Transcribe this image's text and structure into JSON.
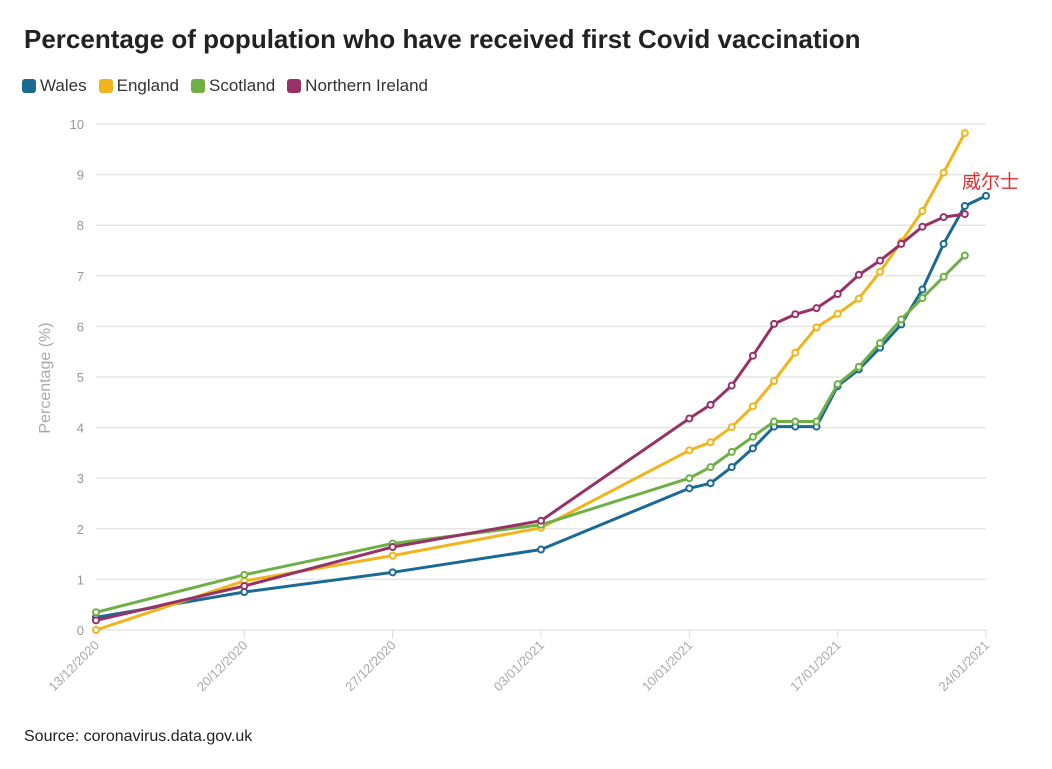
{
  "title": "Percentage of population who have received first Covid vaccination",
  "source": "Source: coronavirus.data.gov.uk",
  "legend": [
    {
      "name": "Wales",
      "color": "#1b6a94"
    },
    {
      "name": "England",
      "color": "#f0b51c"
    },
    {
      "name": "Scotland",
      "color": "#6fb046"
    },
    {
      "name": "Northern Ireland",
      "color": "#973267"
    }
  ],
  "chart_data": {
    "type": "line",
    "title": "Percentage of population who have received first Covid vaccination",
    "xlabel": "",
    "ylabel": "Percentage (%)",
    "ylim": [
      0,
      10
    ],
    "yticks": [
      "0",
      "1",
      "2",
      "3",
      "4",
      "5",
      "6",
      "7",
      "8",
      "9",
      "10"
    ],
    "xticks": [
      {
        "day": 0,
        "label": "13/12/2020"
      },
      {
        "day": 7,
        "label": "20/12/2020"
      },
      {
        "day": 14,
        "label": "27/12/2020"
      },
      {
        "day": 21,
        "label": "03/01/2021"
      },
      {
        "day": 28,
        "label": "10/01/2021"
      },
      {
        "day": 35,
        "label": "17/01/2021"
      },
      {
        "day": 42,
        "label": "24/01/2021"
      }
    ],
    "annotation": {
      "text": "威尔士",
      "series": "Wales"
    },
    "series": [
      {
        "name": "Wales",
        "color": "#1b6a94",
        "x": [
          0,
          7,
          14,
          21,
          28,
          29,
          30,
          31,
          32,
          33,
          34,
          35,
          36,
          37,
          38,
          39,
          40,
          41,
          42
        ],
        "y": [
          0.25,
          0.75,
          1.14,
          1.59,
          2.8,
          2.9,
          3.22,
          3.59,
          4.02,
          4.02,
          4.02,
          4.82,
          5.15,
          5.58,
          6.04,
          6.73,
          7.63,
          8.38,
          8.58
        ]
      },
      {
        "name": "England",
        "color": "#f0b51c",
        "x": [
          0,
          7,
          14,
          21,
          28,
          29,
          30,
          31,
          32,
          33,
          34,
          35,
          36,
          37,
          38,
          39,
          40,
          41
        ],
        "y": [
          0.0,
          0.97,
          1.47,
          2.02,
          3.55,
          3.71,
          4.01,
          4.42,
          4.92,
          5.48,
          5.98,
          6.25,
          6.55,
          7.08,
          7.67,
          8.28,
          9.04,
          9.82
        ]
      },
      {
        "name": "Scotland",
        "color": "#6fb046",
        "x": [
          0,
          7,
          14,
          21,
          28,
          29,
          30,
          31,
          32,
          33,
          34,
          35,
          36,
          37,
          38,
          39,
          40,
          41
        ],
        "y": [
          0.35,
          1.09,
          1.71,
          2.08,
          3.0,
          3.22,
          3.52,
          3.82,
          4.12,
          4.12,
          4.12,
          4.86,
          5.2,
          5.67,
          6.14,
          6.56,
          6.98,
          7.4
        ]
      },
      {
        "name": "Northern Ireland",
        "color": "#973267",
        "x": [
          0,
          7,
          14,
          21,
          28,
          29,
          30,
          31,
          32,
          33,
          34,
          35,
          36,
          37,
          38,
          39,
          40,
          41
        ],
        "y": [
          0.19,
          0.87,
          1.64,
          2.16,
          4.18,
          4.45,
          4.83,
          5.42,
          6.05,
          6.24,
          6.36,
          6.64,
          7.02,
          7.3,
          7.63,
          7.97,
          8.16,
          8.22
        ]
      }
    ]
  }
}
